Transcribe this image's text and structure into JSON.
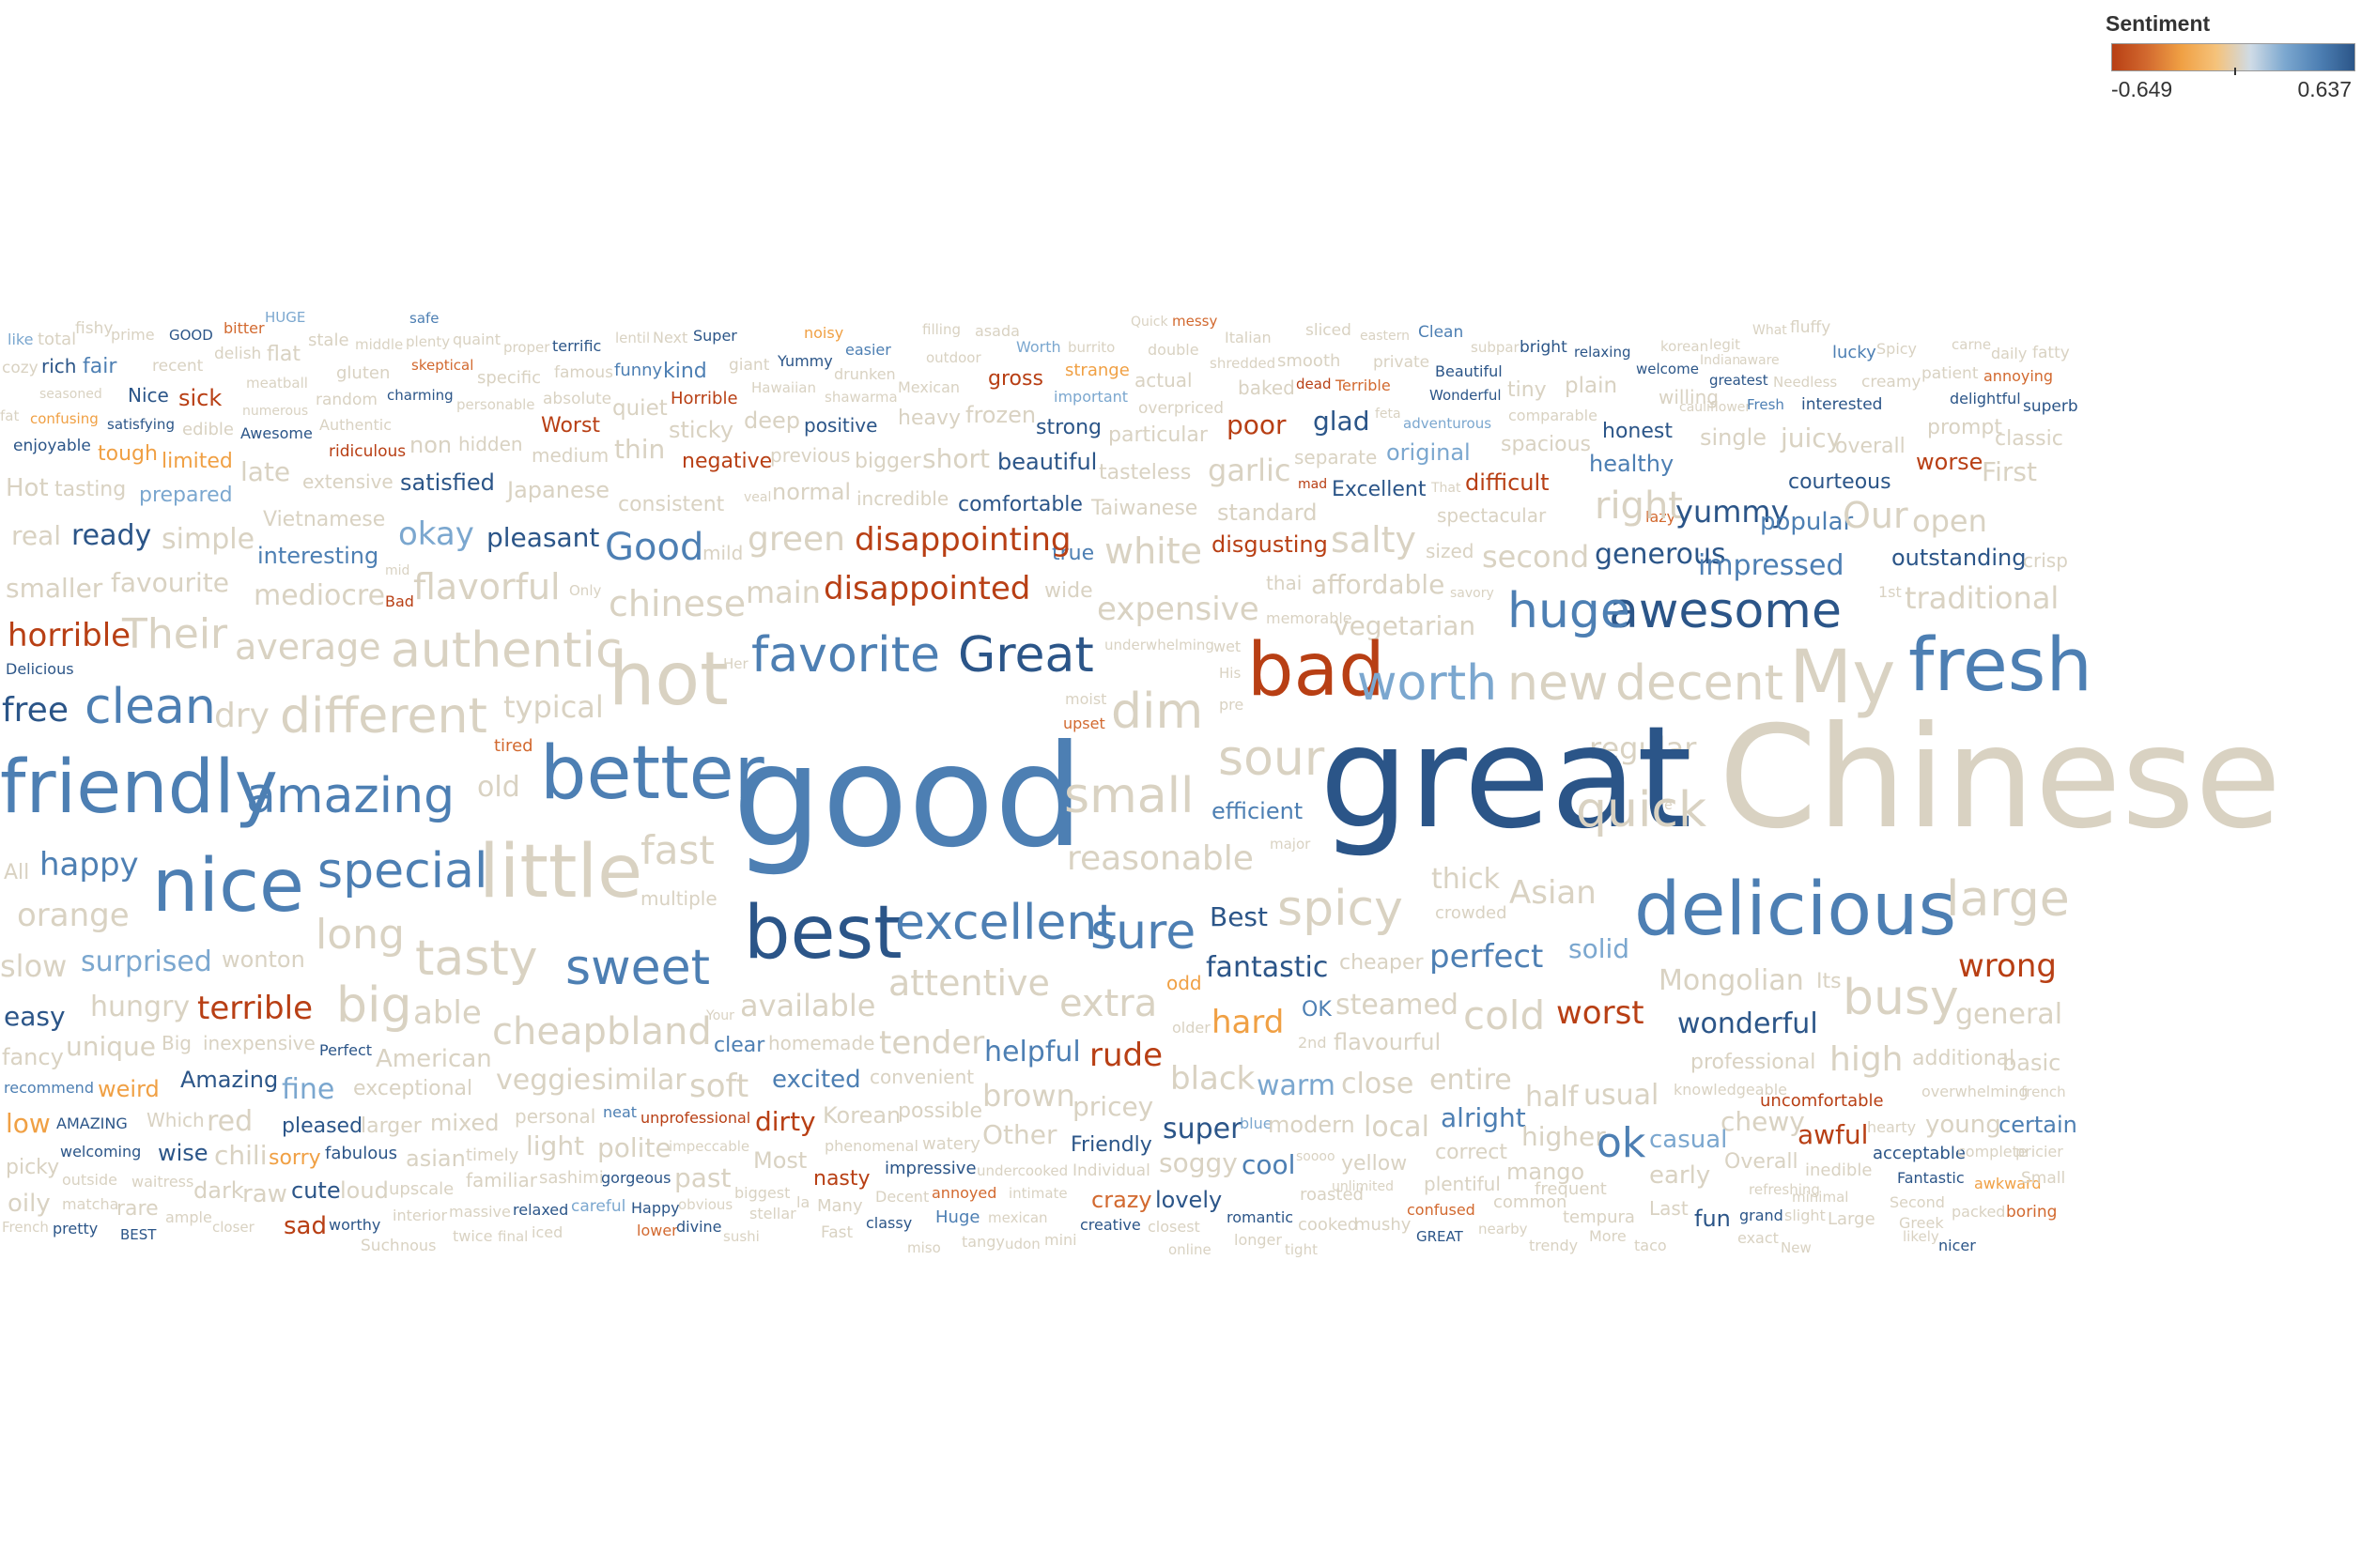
{
  "legend": {
    "title": "Sentiment",
    "min_label": "-0.649",
    "max_label": "0.637"
  },
  "colors": {
    "strong_negative": "#b83f14",
    "negative": "#d2692f",
    "mild_negative": "#f0a044",
    "neutral": "#d9d2c2",
    "mild_positive": "#7ba7cf",
    "positive": "#4d7fb3",
    "strong_positive": "#2b5588"
  },
  "chart_data": {
    "type": "wordcloud",
    "encoding": "font size = word frequency, color = sentiment",
    "words": [
      {
        "text": "good",
        "size": 3,
        "sentiment": 0.5
      },
      {
        "text": "great",
        "size": 3,
        "sentiment": 0.6
      },
      {
        "text": "Chinese",
        "size": 3,
        "sentiment": 0.0
      },
      {
        "text": "My",
        "size": 2.5,
        "sentiment": 0.0
      },
      {
        "text": "fresh",
        "size": 2.5,
        "sentiment": 0.45
      },
      {
        "text": "hot",
        "size": 2.5,
        "sentiment": 0.0
      },
      {
        "text": "bad",
        "size": 2.5,
        "sentiment": -0.6
      },
      {
        "text": "delicious",
        "size": 2.5,
        "sentiment": 0.55
      },
      {
        "text": "nice",
        "size": 2.5,
        "sentiment": 0.5
      },
      {
        "text": "friendly",
        "size": 2.5,
        "sentiment": 0.55
      },
      {
        "text": "better",
        "size": 2.5,
        "sentiment": 0.5
      },
      {
        "text": "best",
        "size": 2.5,
        "sentiment": 0.62
      },
      {
        "text": "little",
        "size": 2.5,
        "sentiment": 0.0
      },
      {
        "text": "sweet",
        "size": 2,
        "sentiment": 0.5
      },
      {
        "text": "spicy",
        "size": 2,
        "sentiment": 0.0
      },
      {
        "text": "dim",
        "size": 2,
        "sentiment": 0.0
      },
      {
        "text": "favorite",
        "size": 2,
        "sentiment": 0.5
      },
      {
        "text": "Great",
        "size": 2,
        "sentiment": 0.6
      },
      {
        "text": "worth",
        "size": 2,
        "sentiment": 0.35
      },
      {
        "text": "new",
        "size": 2,
        "sentiment": 0.0
      },
      {
        "text": "decent",
        "size": 2,
        "sentiment": 0.0
      },
      {
        "text": "amazing",
        "size": 2,
        "sentiment": 0.55
      },
      {
        "text": "clean",
        "size": 2,
        "sentiment": 0.45
      },
      {
        "text": "different",
        "size": 2,
        "sentiment": 0.0
      },
      {
        "text": "small",
        "size": 2,
        "sentiment": 0.0
      },
      {
        "text": "tasty",
        "size": 2,
        "sentiment": 0.0
      },
      {
        "text": "sure",
        "size": 2,
        "sentiment": 0.45
      },
      {
        "text": "big",
        "size": 2,
        "sentiment": 0.0
      },
      {
        "text": "busy",
        "size": 2,
        "sentiment": 0.0
      },
      {
        "text": "large",
        "size": 2,
        "sentiment": 0.0
      },
      {
        "text": "authentic",
        "size": 2,
        "sentiment": 0.0
      },
      {
        "text": "awesome",
        "size": 2,
        "sentiment": 0.6
      },
      {
        "text": "huge",
        "size": 2,
        "sentiment": 0.5
      },
      {
        "text": "excellent",
        "size": 2,
        "sentiment": 0.55
      },
      {
        "text": "special",
        "size": 2,
        "sentiment": 0.45
      },
      {
        "text": "quick",
        "size": 2,
        "sentiment": 0.0
      },
      {
        "text": "sour",
        "size": 2,
        "sentiment": 0.0
      },
      {
        "text": "disappointing",
        "size": 1.5,
        "sentiment": -0.6
      },
      {
        "text": "disappointed",
        "size": 1.5,
        "sentiment": -0.6
      },
      {
        "text": "happy",
        "size": 1.5,
        "sentiment": 0.55
      },
      {
        "text": "perfect",
        "size": 1.5,
        "sentiment": 0.55
      },
      {
        "text": "Asian",
        "size": 1.5,
        "sentiment": 0.0
      },
      {
        "text": "hard",
        "size": 1.5,
        "sentiment": -0.3
      },
      {
        "text": "wrong",
        "size": 1.5,
        "sentiment": -0.55
      },
      {
        "text": "worst",
        "size": 1.5,
        "sentiment": -0.6
      },
      {
        "text": "rude",
        "size": 1.5,
        "sentiment": -0.6
      },
      {
        "text": "terrible",
        "size": 1.5,
        "sentiment": -0.6
      },
      {
        "text": "horrible",
        "size": 1.5,
        "sentiment": -0.6
      }
    ]
  }
}
